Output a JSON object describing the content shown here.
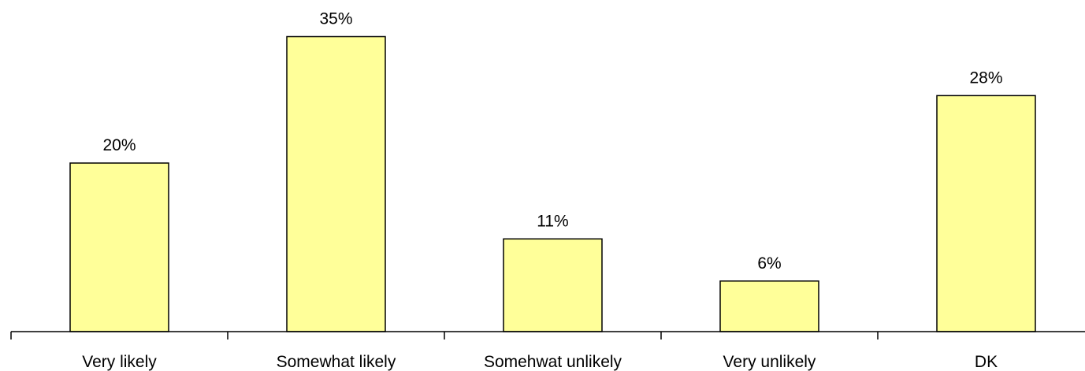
{
  "chart_data": {
    "type": "bar",
    "categories": [
      "Very likely",
      "Somewhat likely",
      "Somehwat unlikely",
      "Very unlikely",
      "DK"
    ],
    "values": [
      20,
      35,
      11,
      6,
      28
    ],
    "value_labels": [
      "20%",
      "35%",
      "11%",
      "6%",
      "28%"
    ],
    "ylim": [
      0,
      40
    ],
    "grid": false,
    "legend": "none",
    "colors": {
      "bar_fill": "#ffff99",
      "bar_stroke": "#000000",
      "axis": "#000000"
    }
  }
}
